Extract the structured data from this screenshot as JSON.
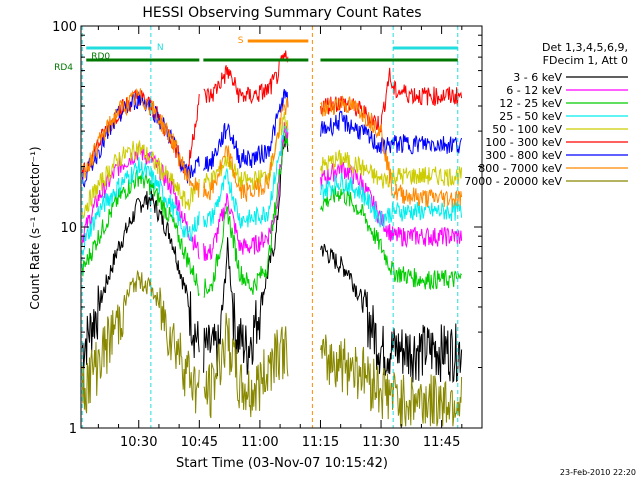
{
  "chart_data": {
    "type": "line",
    "title": "HESSI Observing Summary Count Rates",
    "ylabel": "Count Rate (s⁻¹ detector⁻¹)",
    "xlabel": "Start Time (03-Nov-07 10:15:42)",
    "y_scale": "log",
    "ylim": [
      1,
      100
    ],
    "xlim": [
      "10:15:42",
      "11:55:00"
    ],
    "x_ticks": [
      "10:30",
      "10:45",
      "11:00",
      "11:15",
      "11:30",
      "11:45"
    ],
    "y_ticks": [
      "1",
      "10",
      "100"
    ],
    "grid": false,
    "legend_placement": "right",
    "legend_header": [
      "Det 1,3,4,5,6,9,",
      "FDecim 1, Att 0"
    ],
    "footer_date": "23-Feb-2010 22:20",
    "colors": {
      "background": "#ffffff",
      "axes": "#000000",
      "orbit_flag": "#22dddd",
      "saa_flag": "#ff8c00",
      "rd_flag": "#007700"
    },
    "flags": [
      {
        "label": "N",
        "color": "#22dddd",
        "segments": [
          [
            "10:17",
            "10:33"
          ],
          [
            "11:33",
            "11:49"
          ]
        ]
      },
      {
        "label": "S",
        "color": "#ff8c00",
        "segments": [
          [
            "10:57",
            "11:12"
          ]
        ]
      },
      {
        "label": "RD0",
        "color": "#007700",
        "segments": [
          [
            "10:17",
            "10:45"
          ],
          [
            "10:46",
            "11:12"
          ],
          [
            "11:15",
            "11:49"
          ]
        ]
      }
    ],
    "flag_key_label": "RD4",
    "vertical_markers": [
      {
        "time": "10:16",
        "color": "#22dddd"
      },
      {
        "time": "10:33",
        "color": "#22dddd"
      },
      {
        "time": "11:13",
        "color": "#ff8c00"
      },
      {
        "time": "11:33",
        "color": "#22dddd"
      },
      {
        "time": "11:49",
        "color": "#22dddd"
      }
    ],
    "series": [
      {
        "name": "3 - 6 keV",
        "color": "#000000",
        "noise": 0.5,
        "x": [
          "10:16",
          "10:20",
          "10:25",
          "10:30",
          "10:33",
          "10:38",
          "10:42",
          "10:45",
          "10:50",
          "10:52",
          "10:54",
          "10:57",
          "11:00",
          "11:02",
          "11:04",
          "11:06",
          "11:15",
          "11:18",
          "11:22",
          "11:26",
          "11:30",
          "11:35",
          "11:40",
          "11:45",
          "11:50"
        ],
        "y": [
          2.5,
          4,
          8,
          13,
          14,
          9,
          4.5,
          2.5,
          2.5,
          8,
          3,
          2.5,
          4,
          6,
          9,
          28,
          8,
          7,
          6,
          4,
          2.5,
          2.5,
          2.5,
          2.5,
          2.5
        ]
      },
      {
        "name": "6 - 12 keV",
        "color": "#ff00ff",
        "noise": 0.5,
        "x": [
          "10:16",
          "10:20",
          "10:25",
          "10:30",
          "10:33",
          "10:38",
          "10:42",
          "10:45",
          "10:48",
          "10:52",
          "10:55",
          "10:58",
          "11:02",
          "11:04",
          "11:06",
          "11:15",
          "11:20",
          "11:25",
          "11:30",
          "11:33",
          "11:40",
          "11:50"
        ],
        "y": [
          9,
          14,
          20,
          24,
          22,
          16,
          10,
          7.5,
          7.5,
          14,
          8,
          8,
          9,
          12,
          30,
          17,
          20,
          17,
          11,
          9,
          9,
          9
        ]
      },
      {
        "name": "12 - 25 keV",
        "color": "#00cc00",
        "noise": 0.5,
        "x": [
          "10:16",
          "10:20",
          "10:25",
          "10:30",
          "10:33",
          "10:38",
          "10:42",
          "10:45",
          "10:48",
          "10:52",
          "10:55",
          "10:58",
          "11:02",
          "11:06",
          "11:15",
          "11:20",
          "11:25",
          "11:30",
          "11:33",
          "11:40",
          "11:50"
        ],
        "y": [
          6,
          9,
          14,
          18,
          16,
          11,
          7,
          5,
          5,
          12,
          6,
          5,
          6.5,
          28,
          13,
          15,
          12,
          8,
          6,
          5.5,
          5.5
        ]
      },
      {
        "name": "25 - 50 keV",
        "color": "#00eeee",
        "noise": 0.5,
        "x": [
          "10:16",
          "10:20",
          "10:25",
          "10:30",
          "10:33",
          "10:38",
          "10:42",
          "10:45",
          "10:48",
          "10:52",
          "10:55",
          "10:58",
          "11:02",
          "11:06",
          "11:15",
          "11:20",
          "11:25",
          "11:30",
          "11:33",
          "11:40",
          "11:50"
        ],
        "y": [
          8,
          12,
          16,
          20,
          18,
          13,
          9,
          11,
          11,
          18,
          11,
          11,
          12,
          30,
          15,
          17,
          15,
          11,
          12,
          12,
          12
        ]
      },
      {
        "name": "50 - 100 keV",
        "color": "#cccc00",
        "noise": 0.5,
        "x": [
          "10:16",
          "10:20",
          "10:25",
          "10:30",
          "10:33",
          "10:38",
          "10:42",
          "10:45",
          "10:48",
          "10:52",
          "10:55",
          "10:58",
          "11:02",
          "11:06",
          "11:15",
          "11:20",
          "11:25",
          "11:30",
          "11:33",
          "11:40",
          "11:50"
        ],
        "y": [
          12,
          16,
          22,
          25,
          22,
          17,
          13,
          17,
          17,
          22,
          17,
          17,
          18,
          35,
          20,
          22,
          20,
          17,
          18,
          18,
          18
        ]
      },
      {
        "name": "100 - 300 keV",
        "color": "#ff0000",
        "noise": 0.5,
        "x": [
          "10:16",
          "10:20",
          "10:25",
          "10:30",
          "10:33",
          "10:38",
          "10:42",
          "10:45",
          "10:48",
          "10:52",
          "10:55",
          "10:58",
          "11:02",
          "11:04",
          "11:06",
          "11:15",
          "11:20",
          "11:25",
          "11:30",
          "11:32",
          "11:33",
          "11:40",
          "11:50"
        ],
        "y": [
          18,
          26,
          38,
          45,
          40,
          28,
          18,
          45,
          45,
          60,
          45,
          45,
          48,
          55,
          70,
          40,
          42,
          38,
          32,
          58,
          48,
          45,
          45
        ]
      },
      {
        "name": "300 - 800 keV",
        "color": "#0000ff",
        "noise": 0.5,
        "x": [
          "10:16",
          "10:20",
          "10:25",
          "10:30",
          "10:33",
          "10:38",
          "10:42",
          "10:45",
          "10:48",
          "10:52",
          "10:55",
          "10:58",
          "11:02",
          "11:06",
          "11:15",
          "11:20",
          "11:25",
          "11:30",
          "11:33",
          "11:40",
          "11:50"
        ],
        "y": [
          17,
          24,
          36,
          44,
          40,
          28,
          18,
          21,
          21,
          32,
          22,
          22,
          24,
          45,
          30,
          34,
          30,
          25,
          26,
          26,
          26
        ]
      },
      {
        "name": "800 - 7000 keV",
        "color": "#ff8800",
        "noise": 0.5,
        "x": [
          "10:16",
          "10:20",
          "10:25",
          "10:30",
          "10:33",
          "10:38",
          "10:42",
          "10:45",
          "10:48",
          "10:52",
          "10:55",
          "10:58",
          "11:02",
          "11:06",
          "11:15",
          "11:20",
          "11:25",
          "11:30",
          "11:33",
          "11:40",
          "11:50"
        ],
        "y": [
          18,
          26,
          38,
          45,
          40,
          28,
          18,
          15,
          15,
          24,
          15,
          15,
          17,
          40,
          38,
          42,
          38,
          30,
          15,
          14,
          14
        ]
      },
      {
        "name": "7000 - 20000 keV",
        "color": "#888800",
        "noise": 0.5,
        "x": [
          "10:16",
          "10:20",
          "10:25",
          "10:28",
          "10:30",
          "10:33",
          "10:38",
          "10:42",
          "10:45",
          "10:48",
          "10:52",
          "10:55",
          "10:58",
          "11:02",
          "11:04",
          "11:06",
          "11:15",
          "11:20",
          "11:25",
          "11:30",
          "11:35",
          "11:40",
          "11:50"
        ],
        "y": [
          1.6,
          2.2,
          3.5,
          5,
          5.5,
          5,
          3,
          2,
          1.5,
          1.6,
          3,
          1.6,
          1.5,
          2,
          2.6,
          2.5,
          2.2,
          2.2,
          2,
          1.6,
          1.4,
          1.4,
          1.4
        ]
      }
    ]
  }
}
